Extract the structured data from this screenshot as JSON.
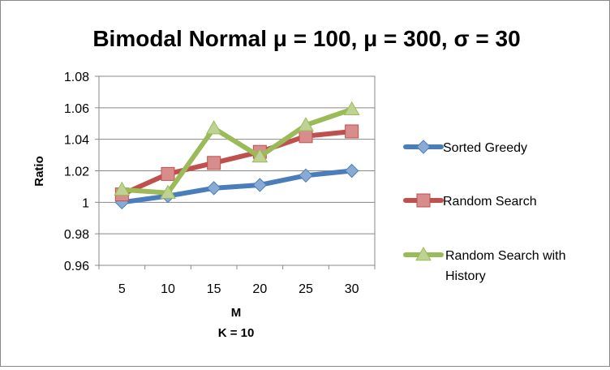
{
  "chart_data": {
    "type": "line",
    "title": "Bimodal Normal μ = 100, μ = 300, σ = 30",
    "xlabel": "M",
    "xlabel_sub": "K = 10",
    "ylabel": "Ratio",
    "categories": [
      "5",
      "10",
      "15",
      "20",
      "25",
      "30"
    ],
    "ylim": [
      0.96,
      1.08
    ],
    "yticks": [
      "0.96",
      "0.98",
      "1",
      "1.02",
      "1.04",
      "1.06",
      "1.08"
    ],
    "ytick_values": [
      0.96,
      0.98,
      1.0,
      1.02,
      1.04,
      1.06,
      1.08
    ],
    "grid": true,
    "legend_position": "right",
    "series": [
      {
        "name": "Sorted Greedy",
        "values": [
          1.0,
          1.004,
          1.009,
          1.011,
          1.017,
          1.02
        ],
        "color": "#4a7ebb",
        "marker": "diamond"
      },
      {
        "name": "Random Search",
        "values": [
          1.005,
          1.018,
          1.025,
          1.032,
          1.042,
          1.045
        ],
        "color": "#c0504d",
        "marker": "square"
      },
      {
        "name": "Random Search with History",
        "legend_lines": [
          "Random Search with",
          "History"
        ],
        "values": [
          1.008,
          1.006,
          1.047,
          1.029,
          1.049,
          1.059
        ],
        "color": "#9bbb59",
        "marker": "triangle"
      }
    ]
  }
}
